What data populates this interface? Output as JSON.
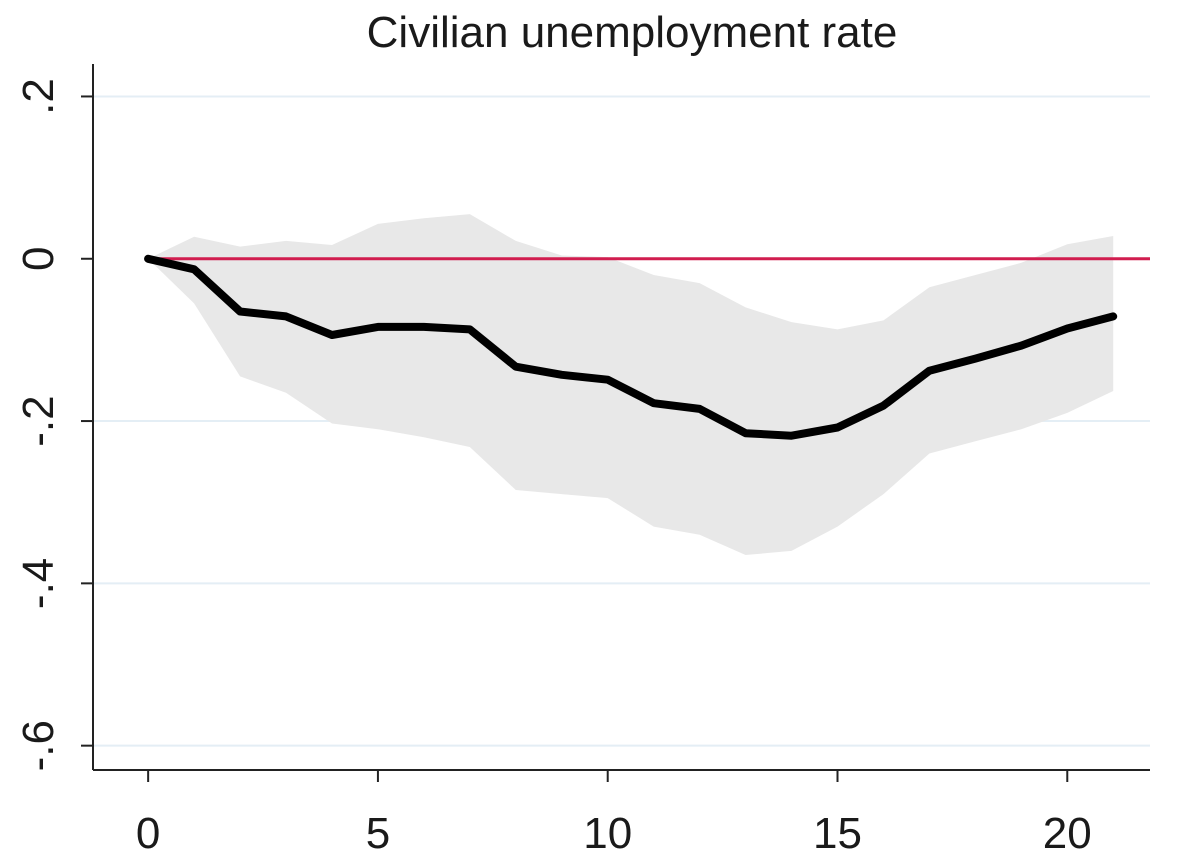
{
  "chart_data": {
    "type": "line",
    "title": "Civilian unemployment rate",
    "xlabel": "",
    "ylabel": "",
    "xlim": [
      -1.2,
      21.8
    ],
    "ylim": [
      -0.63,
      0.24
    ],
    "x_ticks": [
      0,
      5,
      10,
      15,
      20
    ],
    "x_tick_labels": [
      "0",
      "5",
      "10",
      "15",
      "20"
    ],
    "y_ticks": [
      0.2,
      0,
      -0.2,
      -0.4,
      -0.6
    ],
    "y_tick_labels": [
      ".2",
      "0",
      "-.2",
      "-.4",
      "-.6"
    ],
    "grid": "horizontal",
    "reference_line": 0,
    "legend": "none",
    "x": [
      0,
      1,
      2,
      3,
      4,
      5,
      6,
      7,
      8,
      9,
      10,
      11,
      12,
      13,
      14,
      15,
      16,
      17,
      18,
      19,
      20,
      21
    ],
    "series": [
      {
        "values": [
          0.0,
          -0.013,
          -0.065,
          -0.071,
          -0.094,
          -0.084,
          -0.084,
          -0.087,
          -0.133,
          -0.143,
          -0.149,
          -0.178,
          -0.185,
          -0.215,
          -0.218,
          -0.208,
          -0.181,
          -0.138,
          -0.123,
          -0.107,
          -0.086,
          -0.071
        ]
      }
    ],
    "band": {
      "lower": [
        0.0,
        -0.055,
        -0.145,
        -0.165,
        -0.203,
        -0.21,
        -0.22,
        -0.232,
        -0.285,
        -0.29,
        -0.295,
        -0.33,
        -0.34,
        -0.365,
        -0.36,
        -0.33,
        -0.29,
        -0.24,
        -0.225,
        -0.21,
        -0.19,
        -0.163
      ],
      "upper": [
        0.0,
        0.027,
        0.015,
        0.022,
        0.017,
        0.043,
        0.05,
        0.055,
        0.022,
        0.004,
        0.002,
        -0.02,
        -0.03,
        -0.06,
        -0.078,
        -0.087,
        -0.076,
        -0.035,
        -0.02,
        -0.005,
        0.018,
        0.028
      ]
    },
    "colors": {
      "line": "#000000",
      "band": "#e8e8e8",
      "reference": "#d11d4f",
      "grid": "#e4eef5",
      "axis": "#222222"
    }
  }
}
